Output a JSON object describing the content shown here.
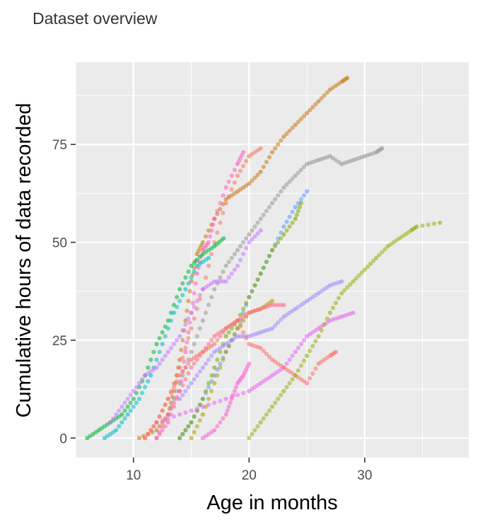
{
  "chart_data": {
    "type": "scatter",
    "subtitle": "Dataset overview",
    "xlabel": "Age in months",
    "ylabel": "Cumulative hours of data recorded",
    "xlim": [
      5,
      39
    ],
    "ylim": [
      -5,
      96
    ],
    "x_ticks": [
      10,
      20,
      30
    ],
    "y_ticks": [
      0,
      25,
      50,
      75
    ],
    "x_minor": [
      5,
      15,
      25,
      35
    ],
    "y_minor": [
      12.5,
      37.5,
      62.5,
      87.5
    ],
    "grid": true,
    "legend": "none",
    "point_style": "semi-transparent circles",
    "series": [
      {
        "color": "#c77c1c",
        "points": [
          [
            10.5,
            0
          ],
          [
            12,
            2
          ],
          [
            13,
            6
          ],
          [
            13.5,
            12
          ],
          [
            14,
            20
          ],
          [
            14.5,
            30
          ],
          [
            15,
            40
          ],
          [
            15.5,
            47
          ],
          [
            16,
            50
          ],
          [
            17,
            56
          ],
          [
            18,
            61
          ],
          [
            19,
            63
          ],
          [
            20,
            65
          ],
          [
            21,
            68
          ],
          [
            22,
            73
          ],
          [
            23,
            77
          ],
          [
            24,
            80
          ],
          [
            25,
            83
          ],
          [
            26,
            86
          ],
          [
            27,
            89
          ],
          [
            28,
            91
          ],
          [
            28.5,
            92
          ]
        ]
      },
      {
        "color": "#ff61c3",
        "points": [
          [
            12,
            0
          ],
          [
            13,
            4
          ],
          [
            14,
            12
          ],
          [
            14.5,
            22
          ],
          [
            15,
            32
          ],
          [
            15.5,
            42
          ],
          [
            16,
            48
          ],
          [
            16.5,
            50
          ],
          [
            17,
            56
          ],
          [
            18,
            64
          ],
          [
            19,
            70
          ],
          [
            19.5,
            73
          ]
        ]
      },
      {
        "color": "#f47a5c",
        "points": [
          [
            11,
            0
          ],
          [
            12,
            4
          ],
          [
            13,
            10
          ],
          [
            14,
            18
          ],
          [
            15,
            28
          ],
          [
            16,
            38
          ],
          [
            17,
            50
          ],
          [
            18,
            60
          ],
          [
            19,
            67
          ],
          [
            20,
            72
          ],
          [
            21,
            74
          ]
        ]
      },
      {
        "color": "#00ba38",
        "points": [
          [
            6,
            0
          ],
          [
            7,
            2
          ],
          [
            8,
            4
          ],
          [
            9,
            6
          ],
          [
            10,
            10
          ],
          [
            11,
            16
          ],
          [
            12,
            24
          ],
          [
            13,
            30
          ],
          [
            14,
            38
          ],
          [
            15,
            44
          ],
          [
            16,
            47
          ],
          [
            17,
            49
          ],
          [
            17.8,
            51
          ]
        ]
      },
      {
        "color": "#00bfc4",
        "points": [
          [
            7.5,
            0
          ],
          [
            8.5,
            2
          ],
          [
            9.5,
            6
          ],
          [
            10.5,
            10
          ],
          [
            11.5,
            16
          ],
          [
            12.5,
            24
          ],
          [
            13.5,
            32
          ],
          [
            14.5,
            38
          ],
          [
            15.5,
            44
          ],
          [
            16.5,
            46
          ]
        ]
      },
      {
        "color": "#999999",
        "points": [
          [
            13,
            6
          ],
          [
            14,
            14
          ],
          [
            15,
            22
          ],
          [
            16,
            30
          ],
          [
            17,
            38
          ],
          [
            18,
            44
          ],
          [
            19,
            48
          ],
          [
            20,
            52
          ],
          [
            21,
            56
          ],
          [
            22,
            60
          ],
          [
            23,
            64
          ],
          [
            24,
            67
          ],
          [
            25,
            70
          ],
          [
            26,
            71
          ],
          [
            27,
            72
          ],
          [
            28,
            70
          ],
          [
            29,
            71
          ],
          [
            30,
            72
          ],
          [
            31,
            73
          ],
          [
            31.5,
            74
          ]
        ]
      },
      {
        "color": "#619cff",
        "points": [
          [
            14,
            0
          ],
          [
            15,
            4
          ],
          [
            16,
            10
          ],
          [
            17,
            16
          ],
          [
            18,
            22
          ],
          [
            19,
            28
          ],
          [
            20,
            36
          ],
          [
            21,
            42
          ],
          [
            22,
            48
          ],
          [
            23,
            54
          ],
          [
            24,
            59
          ],
          [
            25,
            63
          ]
        ]
      },
      {
        "color": "#b79f00",
        "points": [
          [
            15,
            0
          ],
          [
            16,
            6
          ],
          [
            17,
            14
          ],
          [
            18,
            22
          ],
          [
            19,
            28
          ],
          [
            20,
            32
          ],
          [
            21,
            33
          ],
          [
            22,
            35
          ]
        ]
      },
      {
        "color": "#7cae00",
        "points": [
          [
            14,
            0
          ],
          [
            15,
            4
          ],
          [
            16,
            10
          ],
          [
            17,
            18
          ],
          [
            18,
            26
          ],
          [
            19,
            30
          ],
          [
            20,
            36
          ],
          [
            21,
            42
          ],
          [
            22,
            48
          ],
          [
            23,
            52
          ],
          [
            24,
            56
          ],
          [
            24.5,
            60
          ]
        ]
      },
      {
        "color": "#c77cff",
        "points": [
          [
            8,
            4
          ],
          [
            9,
            8
          ],
          [
            10,
            12
          ],
          [
            11,
            16
          ],
          [
            12,
            18
          ],
          [
            13,
            22
          ],
          [
            14,
            26
          ],
          [
            15,
            32
          ],
          [
            16,
            38
          ],
          [
            17,
            40
          ],
          [
            18,
            40
          ],
          [
            19,
            44
          ],
          [
            20,
            50
          ],
          [
            21,
            53
          ]
        ]
      },
      {
        "color": "#a58aff",
        "points": [
          [
            14,
            10
          ],
          [
            15,
            14
          ],
          [
            16,
            18
          ],
          [
            17,
            22
          ],
          [
            18,
            24
          ],
          [
            19,
            26
          ],
          [
            20,
            26
          ],
          [
            21,
            27
          ],
          [
            22,
            28
          ],
          [
            23,
            31
          ],
          [
            24,
            33
          ],
          [
            25,
            35
          ],
          [
            26,
            37
          ],
          [
            27,
            39
          ],
          [
            28,
            40
          ]
        ]
      },
      {
        "color": "#e76bf3",
        "points": [
          [
            12,
            4
          ],
          [
            14,
            6
          ],
          [
            16,
            8
          ],
          [
            18,
            10
          ],
          [
            20,
            12
          ],
          [
            21,
            14
          ],
          [
            22,
            16
          ],
          [
            23,
            18
          ],
          [
            24,
            22
          ],
          [
            25,
            26
          ],
          [
            26,
            28
          ],
          [
            27,
            30
          ],
          [
            28,
            31
          ],
          [
            29,
            32
          ]
        ]
      },
      {
        "color": "#fd61d1",
        "points": [
          [
            16,
            0
          ],
          [
            17,
            2
          ],
          [
            18,
            6
          ],
          [
            18.5,
            10
          ],
          [
            19,
            14
          ],
          [
            19.5,
            16
          ],
          [
            20,
            19
          ]
        ]
      },
      {
        "color": "#ff6c91",
        "points": [
          [
            12,
            0
          ],
          [
            13,
            6
          ],
          [
            14,
            12
          ],
          [
            15,
            18
          ],
          [
            16,
            22
          ],
          [
            17,
            26
          ],
          [
            18,
            28
          ],
          [
            19,
            30
          ],
          [
            20,
            32
          ],
          [
            21,
            33
          ],
          [
            22,
            34
          ],
          [
            23,
            34
          ]
        ]
      },
      {
        "color": "#f8766d",
        "points": [
          [
            11,
            0
          ],
          [
            12,
            4
          ],
          [
            13,
            10
          ],
          [
            14,
            16
          ],
          [
            15,
            20
          ],
          [
            16,
            22
          ],
          [
            17,
            24
          ],
          [
            18,
            28
          ],
          [
            19,
            30
          ],
          [
            20,
            24
          ],
          [
            21,
            23
          ],
          [
            22,
            20
          ],
          [
            23,
            18
          ],
          [
            24,
            16
          ],
          [
            25,
            14
          ],
          [
            26,
            19
          ],
          [
            27,
            21
          ],
          [
            27.5,
            22
          ]
        ]
      },
      {
        "color": "#9bb012",
        "points": [
          [
            20,
            0
          ],
          [
            21,
            4
          ],
          [
            22,
            8
          ],
          [
            23,
            12
          ],
          [
            24,
            16
          ],
          [
            25,
            21
          ],
          [
            26,
            26
          ],
          [
            27,
            32
          ],
          [
            28,
            37
          ],
          [
            29,
            40
          ],
          [
            30,
            43
          ],
          [
            31,
            46
          ],
          [
            32,
            49
          ],
          [
            33,
            51
          ],
          [
            34,
            53
          ],
          [
            34.5,
            54
          ],
          [
            36.5,
            55
          ]
        ]
      }
    ]
  }
}
